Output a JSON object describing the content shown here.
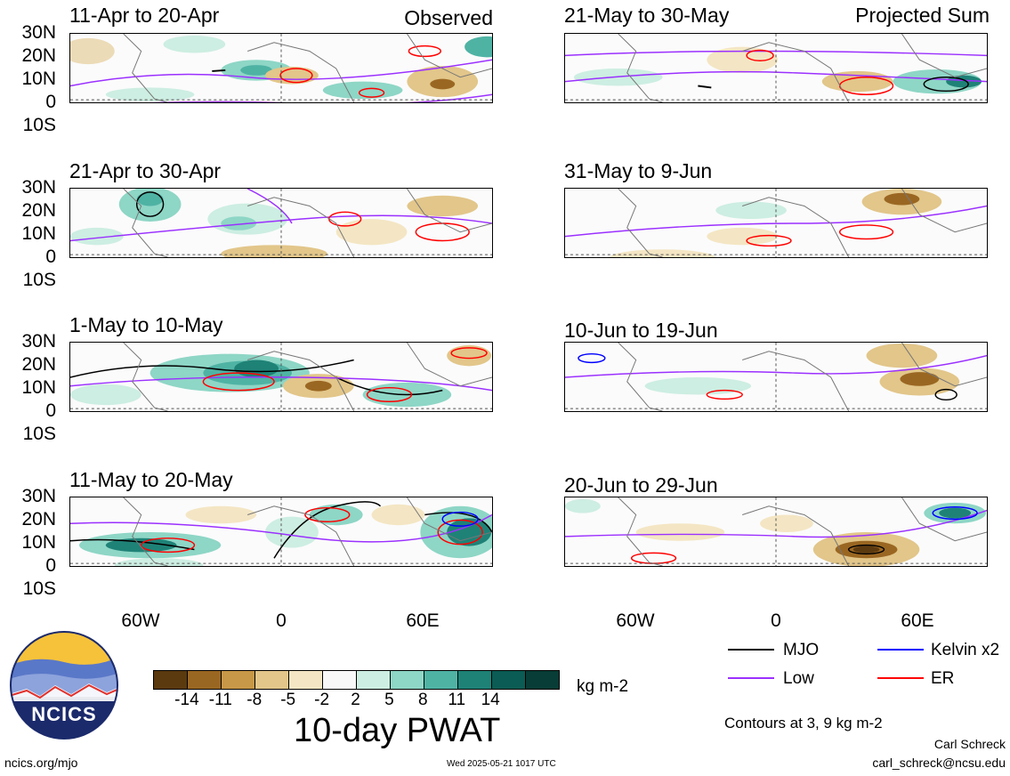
{
  "panels": [
    {
      "title": "11-Apr to 20-Apr",
      "tag": "Observed"
    },
    {
      "title": "21-Apr to 30-Apr",
      "tag": ""
    },
    {
      "title": "1-May to 10-May",
      "tag": ""
    },
    {
      "title": "11-May to 20-May",
      "tag": ""
    },
    {
      "title": "21-May to 30-May",
      "tag": "Projected Sum"
    },
    {
      "title": "31-May to 9-Jun",
      "tag": ""
    },
    {
      "title": "10-Jun to 19-Jun",
      "tag": ""
    },
    {
      "title": "20-Jun to 29-Jun",
      "tag": ""
    }
  ],
  "lat_labels": [
    "30N",
    "20N",
    "10N",
    "0",
    "10S"
  ],
  "lon_labels": [
    "60W",
    "0",
    "60E"
  ],
  "colorbar": {
    "colors": [
      "#5c3a10",
      "#9a6722",
      "#c79848",
      "#e2c68a",
      "#f4e6c4",
      "#f8f8f8",
      "#cdeee2",
      "#8ed6c6",
      "#4fb3a4",
      "#1f8277",
      "#0b5c54",
      "#073d36"
    ],
    "labels": [
      "-14",
      "-11",
      "-8",
      "-5",
      "-2",
      "2",
      "5",
      "8",
      "11",
      "14"
    ],
    "units": "kg m-2",
    "title": "10-day PWAT"
  },
  "legend": {
    "items": [
      {
        "label": "MJO",
        "color": "#000000"
      },
      {
        "label": "Kelvin x2",
        "color": "#0000ff"
      },
      {
        "label": "Low",
        "color": "#9b30ff"
      },
      {
        "label": "ER",
        "color": "#ff0000"
      }
    ],
    "contours_note": "Contours at 3, 9 kg m-2"
  },
  "logo": {
    "text": "NCICS"
  },
  "footer": {
    "url": "ncics.org/mjo",
    "timestamp": "Wed 2025-05-21 1017 UTC",
    "author": "Carl Schreck",
    "email": "carl_schreck@ncsu.edu"
  }
}
